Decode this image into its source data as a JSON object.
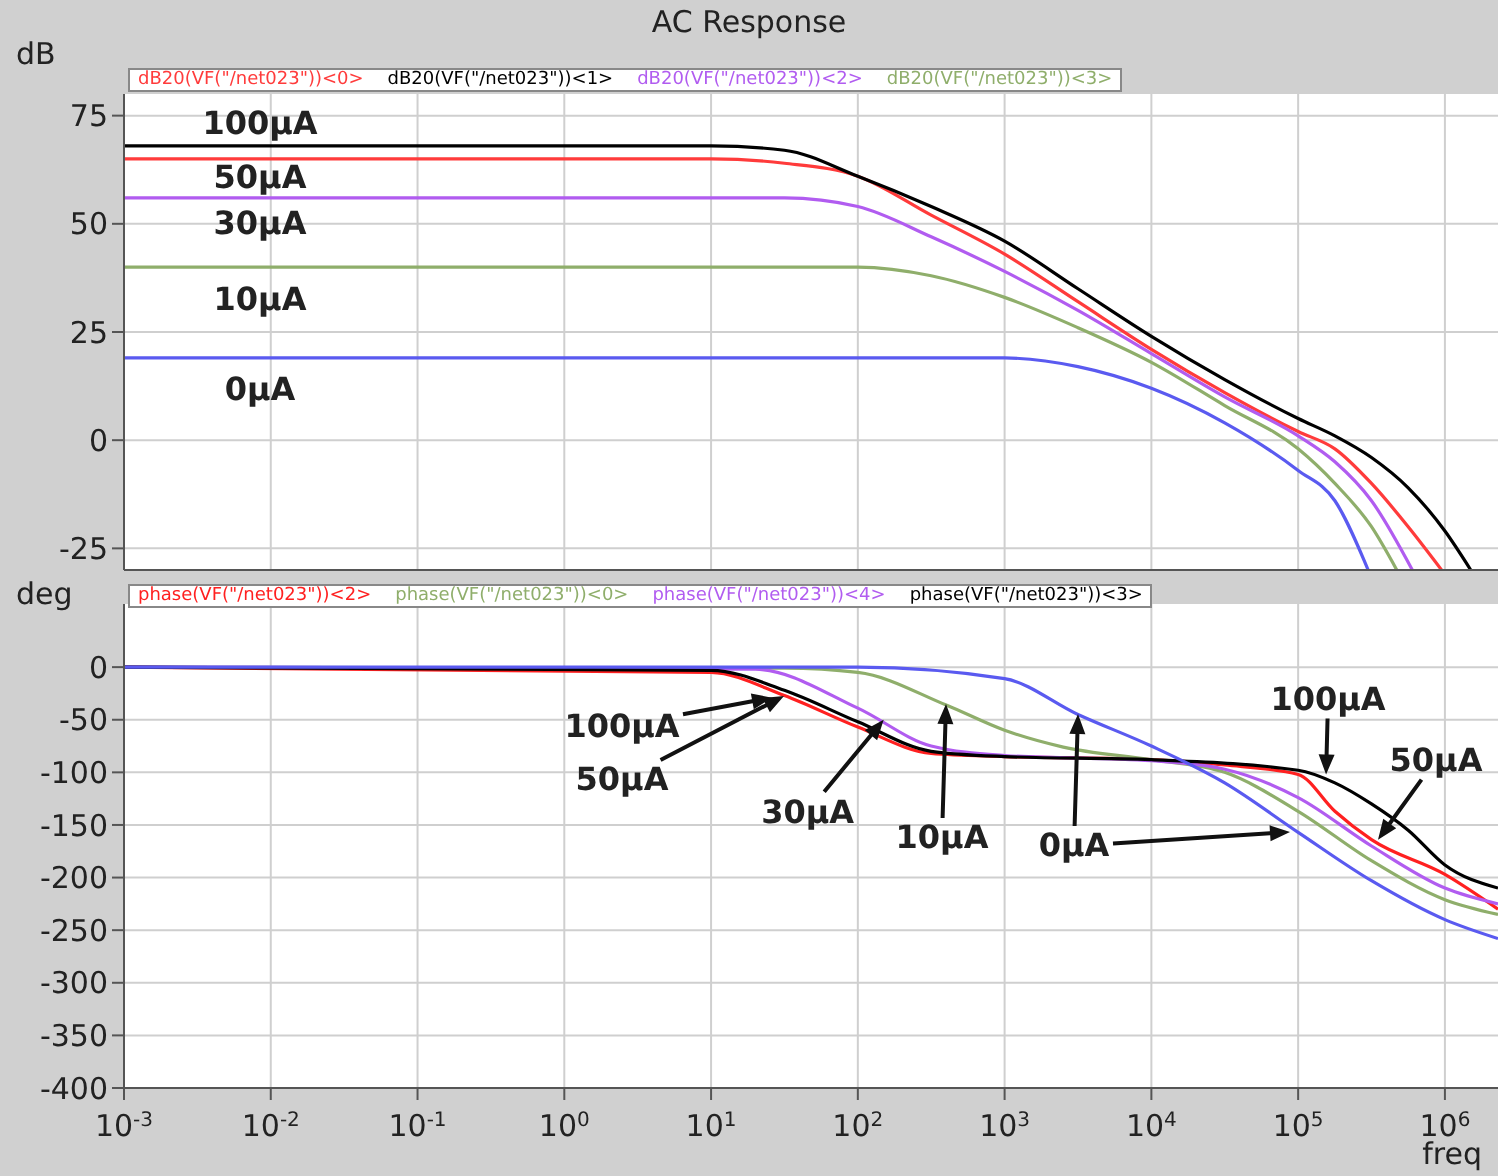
{
  "chart_data": [
    {
      "type": "line",
      "title": "AC Response",
      "ylabel": "dB",
      "log": "x",
      "grid": true,
      "legend": "top left",
      "tick_labels": "y",
      "xlim": [
        0.001,
        2300000
      ],
      "xticks": [
        0.001,
        0.01,
        0.1,
        1,
        10,
        100,
        1000,
        10000,
        100000,
        1000000
      ],
      "ylim": [
        -30,
        80
      ],
      "yticks": [
        -25,
        0,
        25,
        50,
        75
      ],
      "series": [
        {
          "name": "dB20(VF(\"/net023\"))<0>",
          "color": "#ff3b3b",
          "x": [
            0.001,
            10,
            31.6,
            100,
            316,
            1000,
            3160,
            10000,
            31600,
            100000,
            178000,
            316000,
            562000,
            950000
          ],
          "values": [
            65,
            65,
            64,
            61,
            52,
            43,
            32,
            21,
            11,
            2,
            -2,
            -10,
            -20,
            -30
          ]
        },
        {
          "name": "dB20(VF(\"/net023\"))<1>",
          "color": "#000000",
          "x": [
            0.001,
            10,
            31.6,
            100,
            316,
            1000,
            3160,
            10000,
            31600,
            100000,
            178000,
            316000,
            562000,
            1000000,
            1500000
          ],
          "values": [
            68,
            68,
            67,
            61,
            54,
            46,
            35,
            24,
            14,
            5,
            1,
            -4,
            -11,
            -21,
            -30
          ]
        },
        {
          "name": "dB20(VF(\"/net023\"))<2>",
          "color": "#b15cf0",
          "x": [
            0.001,
            31.6,
            100,
            316,
            1000,
            3160,
            10000,
            31600,
            100000,
            178000,
            316000,
            600000
          ],
          "values": [
            56,
            56,
            54,
            47,
            39,
            30,
            20,
            10,
            1,
            -5,
            -14,
            -30
          ]
        },
        {
          "name": "dB20(VF(\"/net023\"))<3>",
          "color": "#8fae6b",
          "x": [
            0.001,
            100,
            316,
            1000,
            3160,
            10000,
            31600,
            100000,
            178000,
            316000,
            470000
          ],
          "values": [
            40,
            40,
            38,
            33,
            26,
            18,
            8,
            -2,
            -10,
            -20,
            -30
          ]
        },
        {
          "color": "#5a5af0",
          "x": [
            0.001,
            1000,
            3160,
            10000,
            31600,
            100000,
            178000,
            300000
          ],
          "values": [
            19,
            19,
            17,
            12,
            4,
            -7,
            -14,
            -30
          ]
        }
      ],
      "annotations": [
        "100µA",
        "50µA",
        "30µA",
        "10µA",
        "0µA"
      ]
    },
    {
      "type": "line",
      "ylabel": "deg",
      "xlabel": "freq",
      "log": "x",
      "grid": true,
      "legend": "top left",
      "xlim": [
        0.001,
        2300000
      ],
      "xticks": [
        {
          "value": 0.001,
          "label": "10$^{-3}$"
        },
        {
          "value": 0.01,
          "label": "10$^{-2}$"
        },
        {
          "value": 0.1,
          "label": "10$^{-1}$"
        },
        {
          "value": 1,
          "label": "10$^{0}$"
        },
        {
          "value": 10,
          "label": "10$^{1}$"
        },
        {
          "value": 100,
          "label": "10$^{2}$"
        },
        {
          "value": 1000,
          "label": "10$^{3}$"
        },
        {
          "value": 10000,
          "label": "10$^{4}$"
        },
        {
          "value": 100000,
          "label": "10$^{5}$"
        },
        {
          "value": 1000000,
          "label": "10$^{6}$"
        }
      ],
      "ylim": [
        -400,
        60
      ],
      "yticks": [
        -400,
        -350,
        -300,
        -250,
        -200,
        -150,
        -100,
        -50,
        0
      ],
      "series": [
        {
          "name": "phase(VF(\"/net023\"))<2>",
          "color": "#ff2020",
          "x": [
            0.001,
            10,
            31.6,
            100,
            316,
            1000,
            10000,
            31600,
            100000,
            178000,
            316000,
            1000000,
            2300000
          ],
          "values": [
            0,
            -5,
            -27,
            -57,
            -82,
            -85,
            -88,
            -93,
            -102,
            -137,
            -164,
            -197,
            -230
          ]
        },
        {
          "name": "phase(VF(\"/net023\"))<0>",
          "color": "#8fae6b",
          "x": [
            0.001,
            31.6,
            100,
            400,
            1000,
            2510,
            10000,
            31600,
            100000,
            316000,
            1000000,
            2300000
          ],
          "values": [
            0,
            -1,
            -5,
            -36,
            -60,
            -76,
            -88,
            -100,
            -137,
            -184,
            -221,
            -235
          ]
        },
        {
          "name": "phase(VF(\"/net023\"))<4>",
          "color": "#b15cf0",
          "x": [
            0.001,
            20,
            100,
            316,
            1000,
            10000,
            31600,
            100000,
            316000,
            1000000,
            2300000
          ],
          "values": [
            0,
            -2,
            -39,
            -75,
            -84,
            -89,
            -97,
            -124,
            -170,
            -210,
            -225
          ]
        },
        {
          "name": "phase(VF(\"/net023\"))<3>",
          "color": "#000000",
          "x": [
            0.001,
            10,
            31.6,
            100,
            316,
            1000,
            10000,
            100000,
            178000,
            316000,
            562000,
            1000000,
            2300000
          ],
          "values": [
            0,
            -3,
            -22,
            -52,
            -80,
            -85,
            -88,
            -98,
            -110,
            -130,
            -155,
            -188,
            -210
          ]
        },
        {
          "color": "#5a5af0",
          "x": [
            0.001,
            100,
            1000,
            3160,
            10000,
            31600,
            100000,
            316000,
            1000000,
            2300000
          ],
          "values": [
            0,
            0,
            -11,
            -45,
            -75,
            -110,
            -157,
            -203,
            -240,
            -258
          ]
        }
      ],
      "annotations": [
        {
          "text": "100µA",
          "x": 26,
          "y": -29
        },
        "50µA",
        {
          "text": "30µA",
          "x": 150,
          "y": -50
        },
        "10µA",
        "0µA",
        {
          "text": "100µA",
          "x": 155000,
          "y": -102
        },
        {
          "text": "50µA",
          "x": 350000,
          "y": -164
        }
      ]
    }
  ]
}
